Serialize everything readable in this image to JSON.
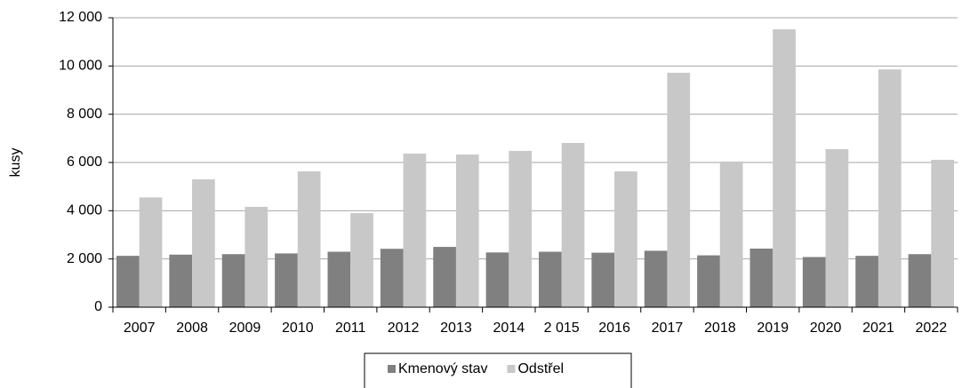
{
  "chart_data": {
    "type": "bar",
    "y_label": "kusy",
    "categories": [
      "2007",
      "2008",
      "2009",
      "2010",
      "2011",
      "2012",
      "2013",
      "2014",
      "2 015",
      "2016",
      "2017",
      "2018",
      "2019",
      "2020",
      "2021",
      "2022"
    ],
    "series": [
      {
        "name": "Kmenový stav",
        "color": "#808080",
        "values": [
          2130,
          2180,
          2200,
          2230,
          2300,
          2420,
          2500,
          2270,
          2300,
          2260,
          2340,
          2150,
          2430,
          2080,
          2130,
          2200
        ]
      },
      {
        "name": "Odstřel",
        "color": "#c8c8c8",
        "values": [
          4550,
          5300,
          4160,
          5630,
          3900,
          6370,
          6330,
          6480,
          6810,
          5630,
          9720,
          6040,
          11520,
          6550,
          9860,
          6110
        ]
      }
    ],
    "ylim": [
      0,
      12000
    ],
    "yticks": [
      0,
      {
        "value": 2000,
        "label": "2 000"
      },
      {
        "value": 4000,
        "label": "4 000"
      },
      {
        "value": 6000,
        "label": "6 000"
      },
      {
        "value": 8000,
        "label": "8 000"
      },
      {
        "value": 10000,
        "label": "10 000"
      },
      {
        "value": 12000,
        "label": "12 000"
      }
    ],
    "grid": true,
    "legend": "bottom"
  }
}
